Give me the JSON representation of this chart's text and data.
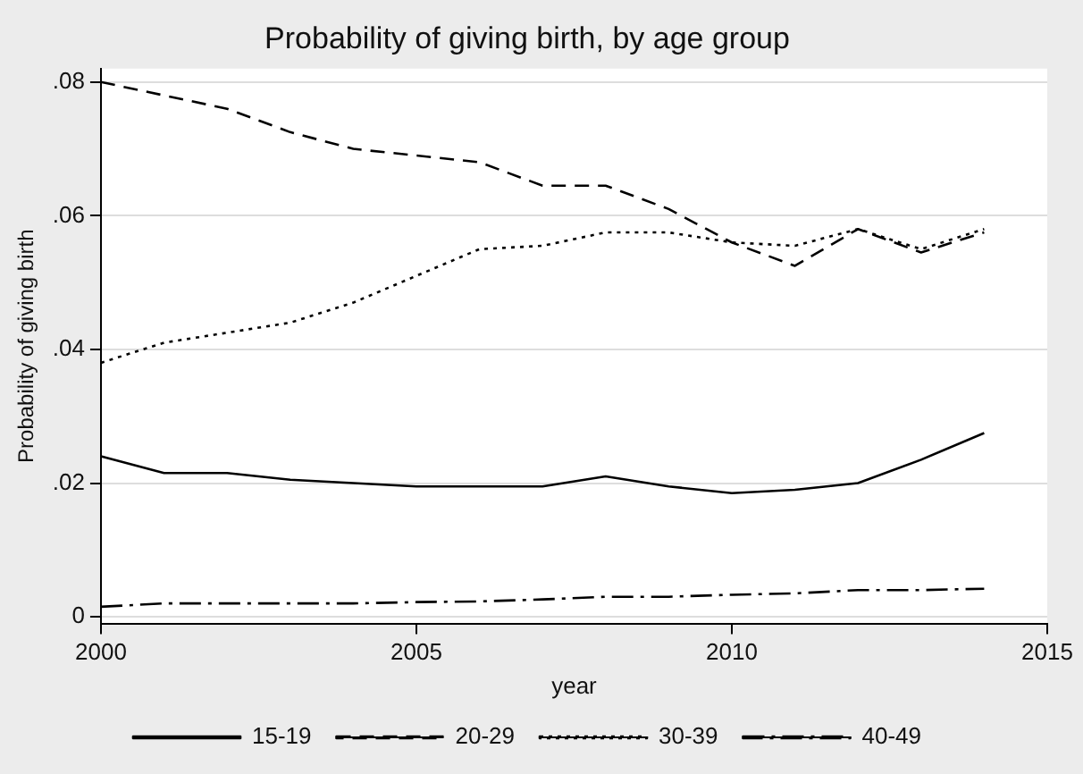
{
  "chart_data": {
    "type": "line",
    "title": "Probability of giving birth, by age group",
    "xlabel": "year",
    "ylabel": "Probability of giving birth",
    "x": [
      2000,
      2001,
      2002,
      2003,
      2004,
      2005,
      2006,
      2007,
      2008,
      2009,
      2010,
      2011,
      2012,
      2013,
      2014
    ],
    "series": [
      {
        "name": "15-19",
        "color": "#000000",
        "line_style": "solid",
        "values": [
          0.024,
          0.0215,
          0.0215,
          0.0205,
          0.02,
          0.0195,
          0.0195,
          0.0195,
          0.021,
          0.0195,
          0.0185,
          0.019,
          0.02,
          0.0235,
          0.0275
        ]
      },
      {
        "name": "20-29",
        "color": "#000000",
        "line_style": "dashed",
        "values": [
          0.08,
          0.078,
          0.076,
          0.0725,
          0.07,
          0.069,
          0.068,
          0.0645,
          0.0645,
          0.061,
          0.056,
          0.0525,
          0.058,
          0.0545,
          0.0575
        ]
      },
      {
        "name": "30-39",
        "color": "#000000",
        "line_style": "dotted",
        "values": [
          0.038,
          0.041,
          0.0425,
          0.044,
          0.047,
          0.051,
          0.055,
          0.0555,
          0.0575,
          0.0575,
          0.056,
          0.0555,
          0.058,
          0.055,
          0.058
        ]
      },
      {
        "name": "40-49",
        "color": "#000000",
        "line_style": "dashdot",
        "values": [
          0.0015,
          0.002,
          0.002,
          0.002,
          0.002,
          0.0022,
          0.0023,
          0.0026,
          0.003,
          0.003,
          0.0033,
          0.0035,
          0.004,
          0.004,
          0.0042
        ]
      }
    ],
    "xlim": [
      2000,
      2015
    ],
    "xticks": [
      2000,
      2005,
      2010,
      2015
    ],
    "ylim": [
      -0.001,
      0.082
    ],
    "yticks": [
      0,
      {
        "value": 0.02,
        "label": ".02"
      },
      {
        "value": 0.04,
        "label": ".04"
      },
      {
        "value": 0.06,
        "label": ".06"
      },
      {
        "value": 0.08,
        "label": ".08"
      }
    ],
    "grid": "y",
    "legend": "bottom",
    "marker": "none"
  }
}
